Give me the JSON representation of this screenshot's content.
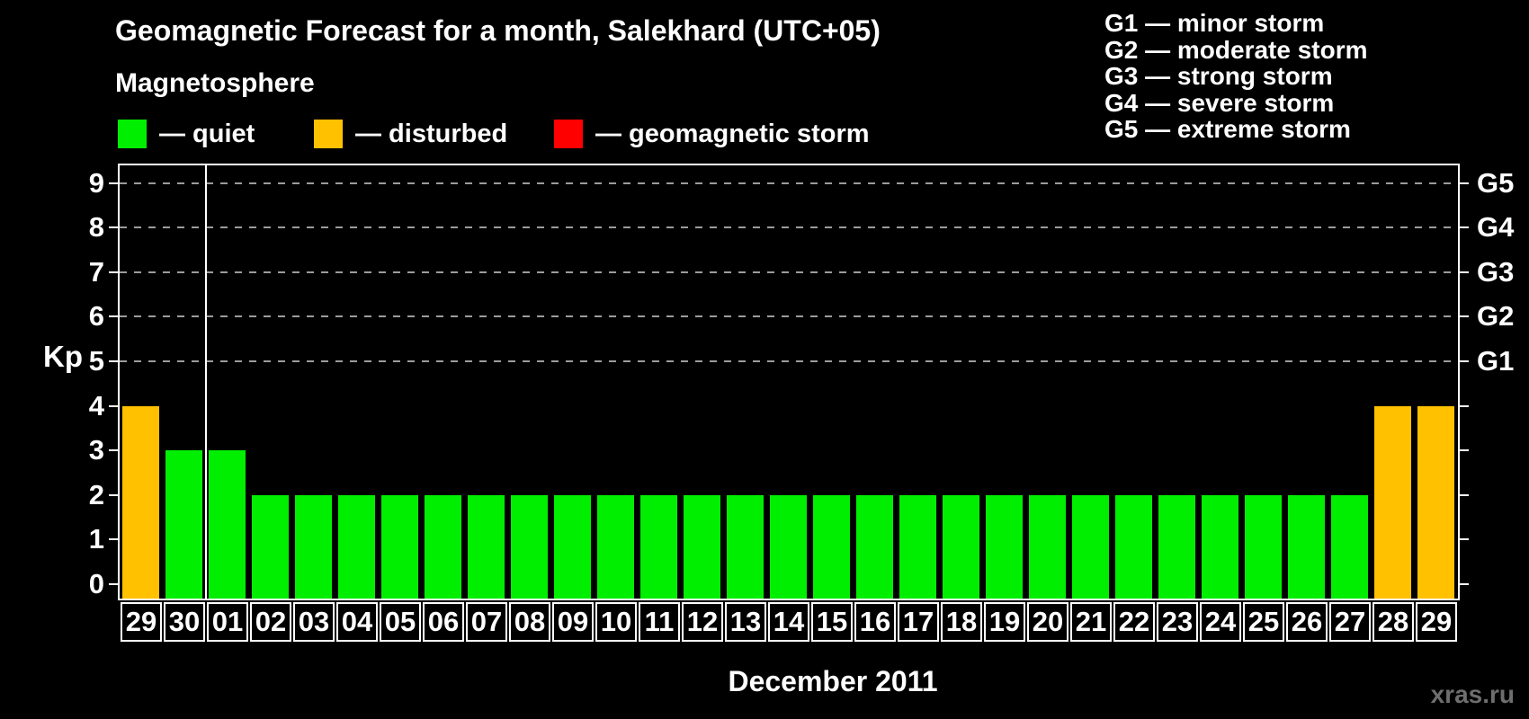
{
  "header": {
    "title": "Geomagnetic Forecast for a month, Salekhard (UTC+05)",
    "subtitle": "Magnetosphere"
  },
  "legend": {
    "items": [
      {
        "id": "quiet",
        "label": "— quiet"
      },
      {
        "id": "disturbed",
        "label": "— disturbed"
      },
      {
        "id": "storm",
        "label": "— geomagnetic storm"
      }
    ]
  },
  "g_scale_legend": {
    "lines": [
      "G1 — minor storm",
      "G2 — moderate storm",
      "G3 — strong storm",
      "G4 — severe storm",
      "G5 — extreme storm"
    ]
  },
  "colors": {
    "quiet": "#00ee00",
    "disturbed": "#ffc100",
    "storm": "#ff0000",
    "grid": "#9c9c9c",
    "axis": "#ffffff",
    "background": "#000000",
    "watermark": "#6e6e6e"
  },
  "axes": {
    "y_label": "Kp",
    "y_ticks": [
      0,
      1,
      2,
      3,
      4,
      5,
      6,
      7,
      8,
      9
    ],
    "right_labels": [
      {
        "kp": 5,
        "label": "G1"
      },
      {
        "kp": 6,
        "label": "G2"
      },
      {
        "kp": 7,
        "label": "G3"
      },
      {
        "kp": 8,
        "label": "G4"
      },
      {
        "kp": 9,
        "label": "G5"
      }
    ],
    "x_label": "December 2011"
  },
  "watermark": "xras.ru",
  "chart_data": {
    "type": "bar",
    "title": "Geomagnetic Forecast for a month, Salekhard (UTC+05)",
    "xlabel": "December 2011",
    "ylabel": "Kp",
    "ylim": [
      0,
      9
    ],
    "gridlines_at_kp": [
      5,
      6,
      7,
      8,
      9
    ],
    "month_separator_after_index": 1,
    "categories": [
      "29",
      "30",
      "01",
      "02",
      "03",
      "04",
      "05",
      "06",
      "07",
      "08",
      "09",
      "10",
      "11",
      "12",
      "13",
      "14",
      "15",
      "16",
      "17",
      "18",
      "19",
      "20",
      "21",
      "22",
      "23",
      "24",
      "25",
      "26",
      "27",
      "28",
      "29"
    ],
    "values": [
      4,
      3,
      3,
      2,
      2,
      2,
      2,
      2,
      2,
      2,
      2,
      2,
      2,
      2,
      2,
      2,
      2,
      2,
      2,
      2,
      2,
      2,
      2,
      2,
      2,
      2,
      2,
      2,
      2,
      4,
      4
    ],
    "states": [
      "disturbed",
      "quiet",
      "quiet",
      "quiet",
      "quiet",
      "quiet",
      "quiet",
      "quiet",
      "quiet",
      "quiet",
      "quiet",
      "quiet",
      "quiet",
      "quiet",
      "quiet",
      "quiet",
      "quiet",
      "quiet",
      "quiet",
      "quiet",
      "quiet",
      "quiet",
      "quiet",
      "quiet",
      "quiet",
      "quiet",
      "quiet",
      "quiet",
      "quiet",
      "disturbed",
      "disturbed"
    ]
  }
}
